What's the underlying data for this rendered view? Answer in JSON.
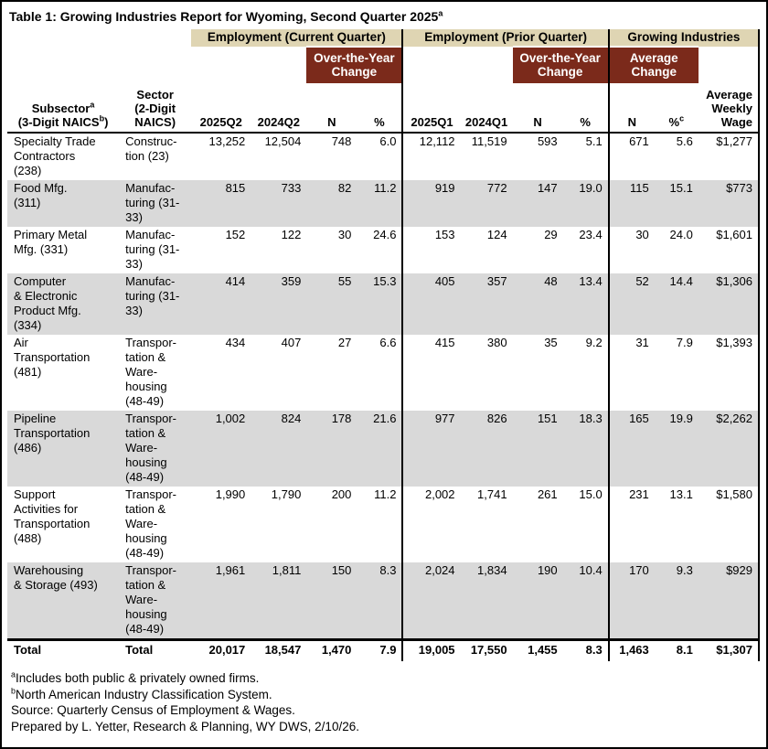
{
  "colors": {
    "tan": "#DFD5B3",
    "maroon": "#7B2A1B",
    "row_shade": "#D9D9D9",
    "border": "#000000"
  },
  "title": {
    "text": "Table 1: Growing Industries Report for Wyoming, Second Quarter 2025",
    "sup": "a"
  },
  "header": {
    "group_current": "Employment (Current Quarter)",
    "group_prior": "Employment (Prior Quarter)",
    "group_growing": "Growing Industries",
    "oty_change": "Over-the-Year\nChange",
    "avg_change": "Average\nChange",
    "columns": {
      "subsector_l1": "Subsector",
      "subsector_l1_sup": "a",
      "subsector_l2": "(3-Digit NAICS",
      "subsector_l2_sup": "b",
      "subsector_l2_end": ")",
      "sector": "Sector\n(2-Digit\nNAICS)",
      "y2025q2": "2025Q2",
      "y2024q2": "2024Q2",
      "n": "N",
      "pct": "%",
      "y2025q1": "2025Q1",
      "y2024q1": "2024Q1",
      "pct_c_sup": "c",
      "wage": "Average\nWeekly\nWage"
    }
  },
  "rows": [
    {
      "subsector": "Specialty Trade\nContractors\n(238)",
      "sector": "Construc-\ntion (23)",
      "shaded": false,
      "values": [
        "13,252",
        "12,504",
        "748",
        "6.0",
        "12,112",
        "11,519",
        "593",
        "5.1",
        "671",
        "5.6",
        "$1,277"
      ]
    },
    {
      "subsector": "Food Mfg.\n(311)",
      "sector": "Manufac-\nturing (31-\n33)",
      "shaded": true,
      "values": [
        "815",
        "733",
        "82",
        "11.2",
        "919",
        "772",
        "147",
        "19.0",
        "115",
        "15.1",
        "$773"
      ]
    },
    {
      "subsector": "Primary Metal\nMfg. (331)",
      "sector": "Manufac-\nturing (31-\n33)",
      "shaded": false,
      "values": [
        "152",
        "122",
        "30",
        "24.6",
        "153",
        "124",
        "29",
        "23.4",
        "30",
        "24.0",
        "$1,601"
      ]
    },
    {
      "subsector": "Computer\n& Electronic\nProduct Mfg.\n(334)",
      "sector": "Manufac-\nturing (31-\n33)",
      "shaded": true,
      "values": [
        "414",
        "359",
        "55",
        "15.3",
        "405",
        "357",
        "48",
        "13.4",
        "52",
        "14.4",
        "$1,306"
      ]
    },
    {
      "subsector": "Air\nTransportation\n(481)",
      "sector": "Transpor-\ntation &\nWare-\nhousing\n(48-49)",
      "shaded": false,
      "values": [
        "434",
        "407",
        "27",
        "6.6",
        "415",
        "380",
        "35",
        "9.2",
        "31",
        "7.9",
        "$1,393"
      ]
    },
    {
      "subsector": "Pipeline\nTransportation\n(486)",
      "sector": "Transpor-\ntation &\nWare-\nhousing\n(48-49)",
      "shaded": true,
      "values": [
        "1,002",
        "824",
        "178",
        "21.6",
        "977",
        "826",
        "151",
        "18.3",
        "165",
        "19.9",
        "$2,262"
      ]
    },
    {
      "subsector": "Support\nActivities for\nTransportation\n(488)",
      "sector": "Transpor-\ntation &\nWare-\nhousing\n(48-49)",
      "shaded": false,
      "values": [
        "1,990",
        "1,790",
        "200",
        "11.2",
        "2,002",
        "1,741",
        "261",
        "15.0",
        "231",
        "13.1",
        "$1,580"
      ]
    },
    {
      "subsector": "Warehousing\n& Storage (493)",
      "sector": "Transpor-\ntation &\nWare-\nhousing\n(48-49)",
      "shaded": true,
      "values": [
        "1,961",
        "1,811",
        "150",
        "8.3",
        "2,024",
        "1,834",
        "190",
        "10.4",
        "170",
        "9.3",
        "$929"
      ]
    }
  ],
  "total": {
    "subsector": "Total",
    "sector": "Total",
    "values": [
      "20,017",
      "18,547",
      "1,470",
      "7.9",
      "19,005",
      "17,550",
      "1,455",
      "8.3",
      "1,463",
      "8.1",
      "$1,307"
    ]
  },
  "footnotes": [
    {
      "sup": "a",
      "text": "Includes both public & privately owned firms."
    },
    {
      "sup": "b",
      "text": "North American Industry Classification System."
    },
    {
      "sup": "",
      "text": "Source: Quarterly Census of Employment & Wages."
    },
    {
      "sup": "",
      "text": "Prepared by L. Yetter, Research & Planning, WY DWS, 2/10/26."
    }
  ]
}
